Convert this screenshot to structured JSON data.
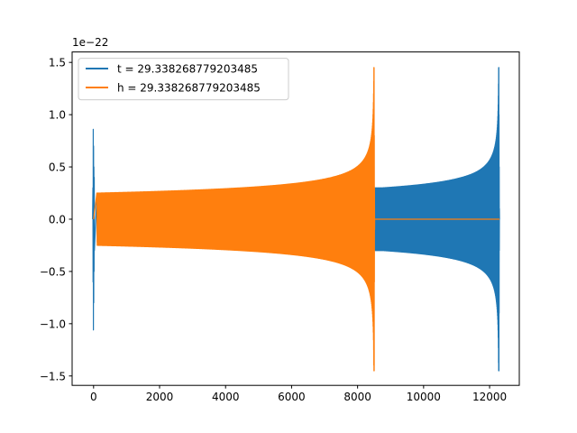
{
  "chart_data": {
    "type": "line",
    "title": "",
    "xlabel": "",
    "ylabel": "",
    "y_offset_label": "1e−22",
    "xlim": [
      -650,
      12900
    ],
    "ylim": [
      -1.59,
      1.6
    ],
    "x_ticks": [
      0,
      2000,
      4000,
      6000,
      8000,
      10000,
      12000
    ],
    "x_tick_labels": [
      "0",
      "2000",
      "4000",
      "6000",
      "8000",
      "10000",
      "12000"
    ],
    "y_ticks": [
      -1.5,
      -1.0,
      -0.5,
      0.0,
      0.5,
      1.0,
      1.5
    ],
    "y_tick_labels": [
      "−1.5",
      "−1.0",
      "−0.5",
      "0.0",
      "0.5",
      "1.0",
      "1.5"
    ],
    "grid": false,
    "legend_position": "top-left",
    "series": [
      {
        "name": "t = 29.338268779203485",
        "color": "#1f77b4",
        "start_burst": {
          "x": 0,
          "max": 0.86,
          "min": -1.06
        },
        "inspiral": {
          "x_start": 100,
          "x_merge": 12280,
          "amp_start": 0.22,
          "amp_mid": 0.3,
          "amp_peak": 1.45
        },
        "ringdown_end": 12300
      },
      {
        "name": "h = 29.338268779203485",
        "color": "#ff7f0e",
        "inspiral": {
          "x_start": 100,
          "x_merge": 8500,
          "amp_start": 0.25,
          "amp_peak": 1.45
        },
        "flat_until": 12300
      }
    ]
  }
}
